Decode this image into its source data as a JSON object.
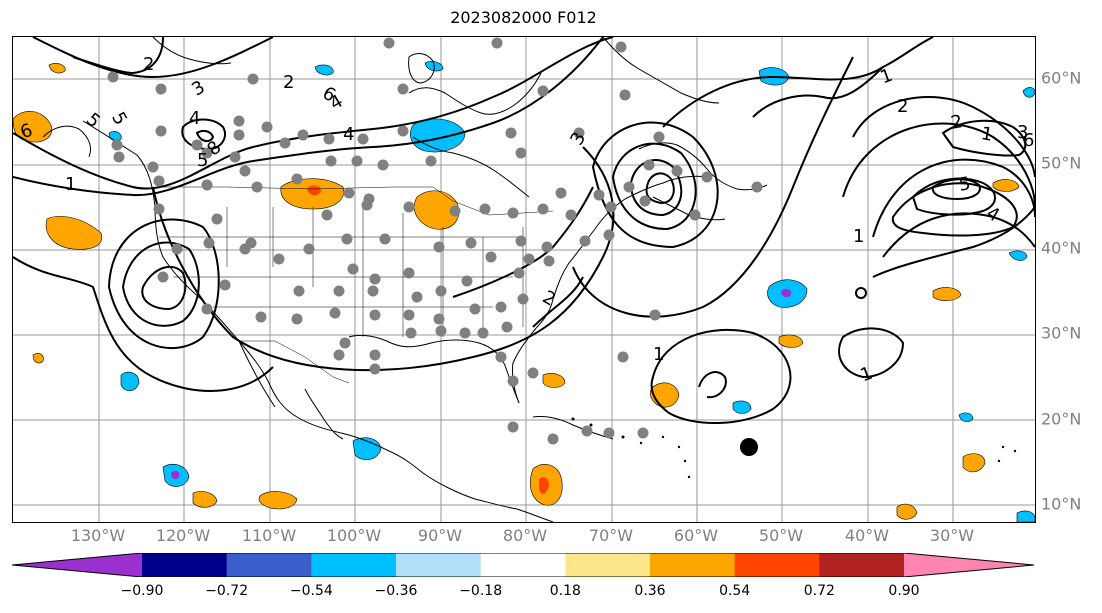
{
  "title": "2023082000 F012",
  "lon_labels": [
    "130°W",
    "120°W",
    "110°W",
    "100°W",
    "90°W",
    "80°W",
    "70°W",
    "60°W",
    "50°W",
    "40°W",
    "30°W"
  ],
  "lat_labels": [
    "60°N",
    "50°N",
    "40°N",
    "30°N",
    "20°N",
    "10°N"
  ],
  "contour_labels": [
    "2",
    "3",
    "6",
    "4",
    "5",
    "6",
    "4",
    "5",
    "5",
    "8",
    "3",
    "4",
    "1",
    "2",
    "1",
    "1",
    "1",
    "2",
    "2",
    "1",
    "3",
    "6",
    "5",
    "4",
    "1",
    "2"
  ],
  "colorbar": {
    "ticks": [
      "−0.90",
      "−0.72",
      "−0.54",
      "−0.36",
      "−0.18",
      "0.18",
      "0.36",
      "0.54",
      "0.72",
      "0.90"
    ],
    "colors": [
      "#9b30d0",
      "#00008b",
      "#3a5fcd",
      "#00bfff",
      "#b0e0f8",
      "#ffffff",
      "#fde68a",
      "#ffa500",
      "#ff4500",
      "#b22222",
      "#ff85b0"
    ]
  },
  "marker_color": "#808080"
}
